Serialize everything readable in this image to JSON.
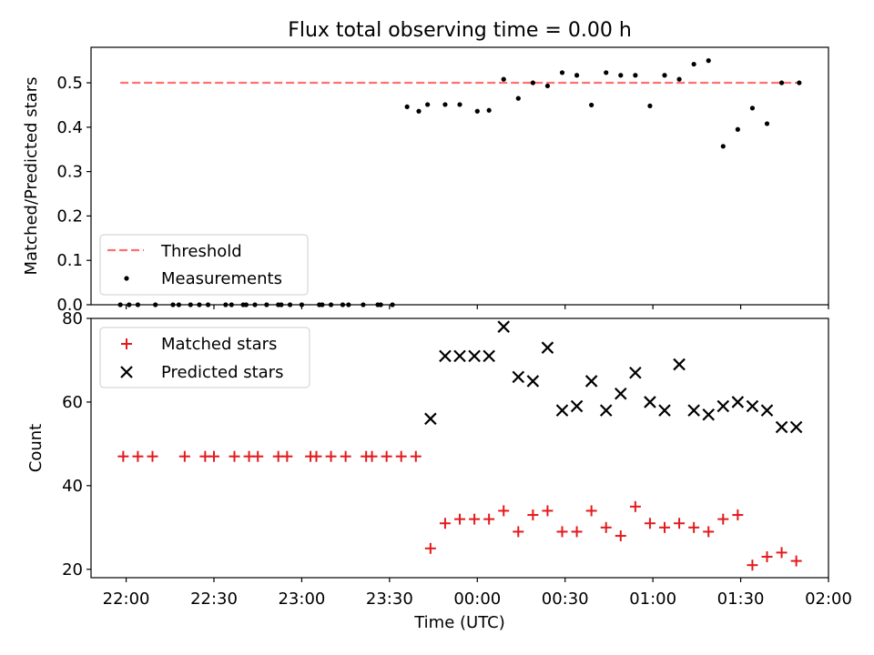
{
  "chart_data": [
    {
      "type": "scatter",
      "title": "Flux total observing time = 0.00 h",
      "xlabel": "",
      "ylabel": "Matched/Predicted stars",
      "xlim": [
        "21:48",
        "02:00"
      ],
      "ylim": [
        0,
        0.58
      ],
      "yticks": [
        "0.0",
        "0.1",
        "0.2",
        "0.3",
        "0.4",
        "0.5"
      ],
      "legend_position": "lower-left",
      "threshold": {
        "name": "Threshold",
        "value": 0.5,
        "x_start": "21:58",
        "x_end": "01:50",
        "color": "#ff7070",
        "style": "dashed"
      },
      "series": [
        {
          "name": "Measurements",
          "marker": "dot",
          "color": "#000000",
          "x": [
            "21:58",
            "22:01",
            "22:04",
            "22:10",
            "22:16",
            "22:18",
            "22:22",
            "22:25",
            "22:28",
            "22:34",
            "22:36",
            "22:40",
            "22:41",
            "22:44",
            "22:48",
            "22:52",
            "22:53",
            "22:56",
            "23:00",
            "23:06",
            "23:07",
            "23:10",
            "23:14",
            "23:16",
            "23:21",
            "23:26",
            "23:27",
            "23:31",
            "23:36",
            "23:40",
            "23:43",
            "23:49",
            "23:54",
            "00:00",
            "00:04",
            "00:09",
            "00:14",
            "00:19",
            "00:24",
            "00:29",
            "00:34",
            "00:39",
            "00:44",
            "00:49",
            "00:54",
            "00:59",
            "01:04",
            "01:09",
            "01:14",
            "01:19",
            "01:24",
            "01:29",
            "01:34",
            "01:39",
            "01:44",
            "01:50"
          ],
          "y": [
            0,
            0,
            0,
            0,
            0,
            0,
            0,
            0,
            0,
            0,
            0,
            0,
            0,
            0,
            0,
            0,
            0,
            0,
            0,
            0,
            0,
            0,
            0,
            0,
            0,
            0,
            0,
            0,
            0.446,
            0.436,
            0.451,
            0.451,
            0.451,
            0.436,
            0.438,
            0.508,
            0.465,
            0.5,
            0.493,
            0.523,
            0.517,
            0.45,
            0.523,
            0.517,
            0.517,
            0.448,
            0.517,
            0.508,
            0.542,
            0.55,
            0.357,
            0.395,
            0.443,
            0.408,
            0.5,
            0.5
          ]
        }
      ]
    },
    {
      "type": "scatter",
      "title": "",
      "xlabel": "Time (UTC)",
      "ylabel": "Count",
      "xlim": [
        "21:48",
        "02:00"
      ],
      "ylim": [
        18,
        80
      ],
      "xticks": [
        "22:00",
        "22:30",
        "23:00",
        "23:30",
        "00:00",
        "00:30",
        "01:00",
        "01:30",
        "02:00"
      ],
      "yticks": [
        "20",
        "40",
        "60",
        "80"
      ],
      "legend_position": "upper-left",
      "series": [
        {
          "name": "Matched stars",
          "marker": "plus",
          "color": "#e31a1c",
          "x": [
            "21:59",
            "22:04",
            "22:09",
            "22:20",
            "22:27",
            "22:30",
            "22:37",
            "22:42",
            "22:45",
            "22:52",
            "22:55",
            "23:03",
            "23:05",
            "23:10",
            "23:15",
            "23:22",
            "23:24",
            "23:29",
            "23:34",
            "23:39",
            "23:44",
            "23:49",
            "23:54",
            "23:59",
            "00:04",
            "00:09",
            "00:14",
            "00:19",
            "00:24",
            "00:29",
            "00:34",
            "00:39",
            "00:44",
            "00:49",
            "00:54",
            "00:59",
            "01:04",
            "01:09",
            "01:14",
            "01:19",
            "01:24",
            "01:29",
            "01:34",
            "01:39",
            "01:44",
            "01:49"
          ],
          "y": [
            47,
            47,
            47,
            47,
            47,
            47,
            47,
            47,
            47,
            47,
            47,
            47,
            47,
            47,
            47,
            47,
            47,
            47,
            47,
            47,
            25,
            31,
            32,
            32,
            32,
            34,
            29,
            33,
            34,
            29,
            29,
            34,
            30,
            28,
            35,
            31,
            30,
            31,
            30,
            29,
            32,
            33,
            21,
            23,
            24,
            22
          ]
        },
        {
          "name": "Predicted stars",
          "marker": "x",
          "color": "#000000",
          "x": [
            "23:44",
            "23:49",
            "23:54",
            "23:59",
            "00:04",
            "00:09",
            "00:14",
            "00:19",
            "00:24",
            "00:29",
            "00:34",
            "00:39",
            "00:44",
            "00:49",
            "00:54",
            "00:59",
            "01:04",
            "01:09",
            "01:14",
            "01:19",
            "01:24",
            "01:29",
            "01:34",
            "01:39",
            "01:44",
            "01:49"
          ],
          "y": [
            56,
            71,
            71,
            71,
            71,
            78,
            66,
            65,
            73,
            58,
            59,
            65,
            58,
            62,
            67,
            60,
            58,
            69,
            58,
            57,
            59,
            60,
            59,
            58,
            54,
            54
          ]
        }
      ]
    }
  ]
}
